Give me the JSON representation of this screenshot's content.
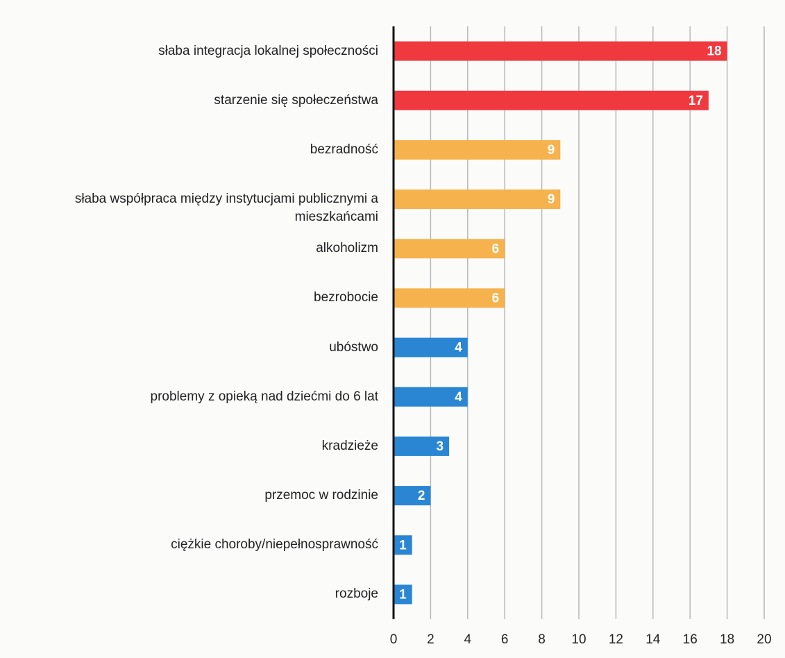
{
  "chart_data": {
    "type": "bar",
    "orientation": "horizontal",
    "categories": [
      "słaba integracja lokalnej społeczności",
      "starzenie się społeczeństwa",
      "bezradność",
      "słaba współpraca między instytucjami publicznymi a mieszkańcami",
      "alkoholizm",
      "bezrobocie",
      "ubóstwo",
      "problemy z opieką nad dziećmi do 6 lat",
      "kradzieże",
      "przemoc w rodzinie",
      "ciężkie choroby/niepełnosprawność",
      "rozboje"
    ],
    "values": [
      18,
      17,
      9,
      9,
      6,
      6,
      4,
      4,
      3,
      2,
      1,
      1
    ],
    "colors": [
      "#f0393f",
      "#f0393f",
      "#f6b24c",
      "#f6b24c",
      "#f6b24c",
      "#f6b24c",
      "#2a86d2",
      "#2a86d2",
      "#2a86d2",
      "#2a86d2",
      "#2a86d2",
      "#2a86d2"
    ],
    "xlim": [
      0,
      20
    ],
    "xticks": [
      0,
      2,
      4,
      6,
      8,
      10,
      12,
      14,
      16,
      18,
      20
    ],
    "grid": true
  }
}
